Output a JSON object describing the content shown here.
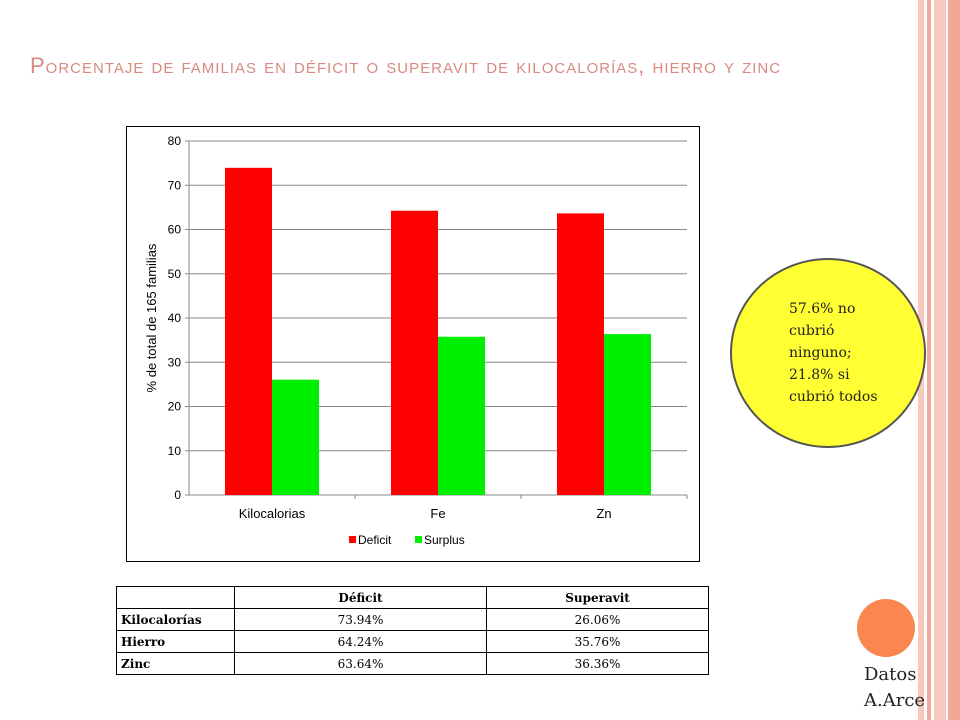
{
  "title": "Porcentaje de familias en déficit o superavit de kilocalorías, hierro y zinc",
  "colors": {
    "deficit": "#ff0000",
    "surplus": "#00ee00",
    "title": "#d88a80",
    "callout_fill": "#ffff33",
    "accent_circle": "#f9874f",
    "stripes": [
      "#f8c8bd",
      "#f3a798",
      "#f8c8bd",
      "#f3a798"
    ]
  },
  "chart_data": {
    "type": "bar",
    "categories": [
      "Kilocalorias",
      "Fe",
      "Zn"
    ],
    "series": [
      {
        "name": "Deficit",
        "values": [
          73.94,
          64.24,
          63.64
        ]
      },
      {
        "name": "Surplus",
        "values": [
          26.06,
          35.76,
          36.36
        ]
      }
    ],
    "ylabel": "% de total de 165 familias",
    "ylim": [
      0,
      80
    ],
    "yticks": [
      "0",
      "10",
      "20",
      "30",
      "40",
      "50",
      "60",
      "70",
      "80"
    ],
    "grid": true,
    "legend_position": "bottom"
  },
  "callout": {
    "lines": [
      "57.6% no",
      "cubrió",
      "ninguno;",
      "21.8% si",
      "cubrió todos"
    ]
  },
  "table": {
    "headers": [
      "",
      "Déficit",
      "Superavit"
    ],
    "rows": [
      {
        "label": "Kilocalorías",
        "deficit": "73.94%",
        "superavit": "26.06%"
      },
      {
        "label": "Hierro",
        "deficit": "64.24%",
        "superavit": "35.76%"
      },
      {
        "label": "Zinc",
        "deficit": "63.64%",
        "superavit": "36.36%"
      }
    ]
  },
  "credit": {
    "line1": "Datos",
    "line2": "A.Arce"
  }
}
